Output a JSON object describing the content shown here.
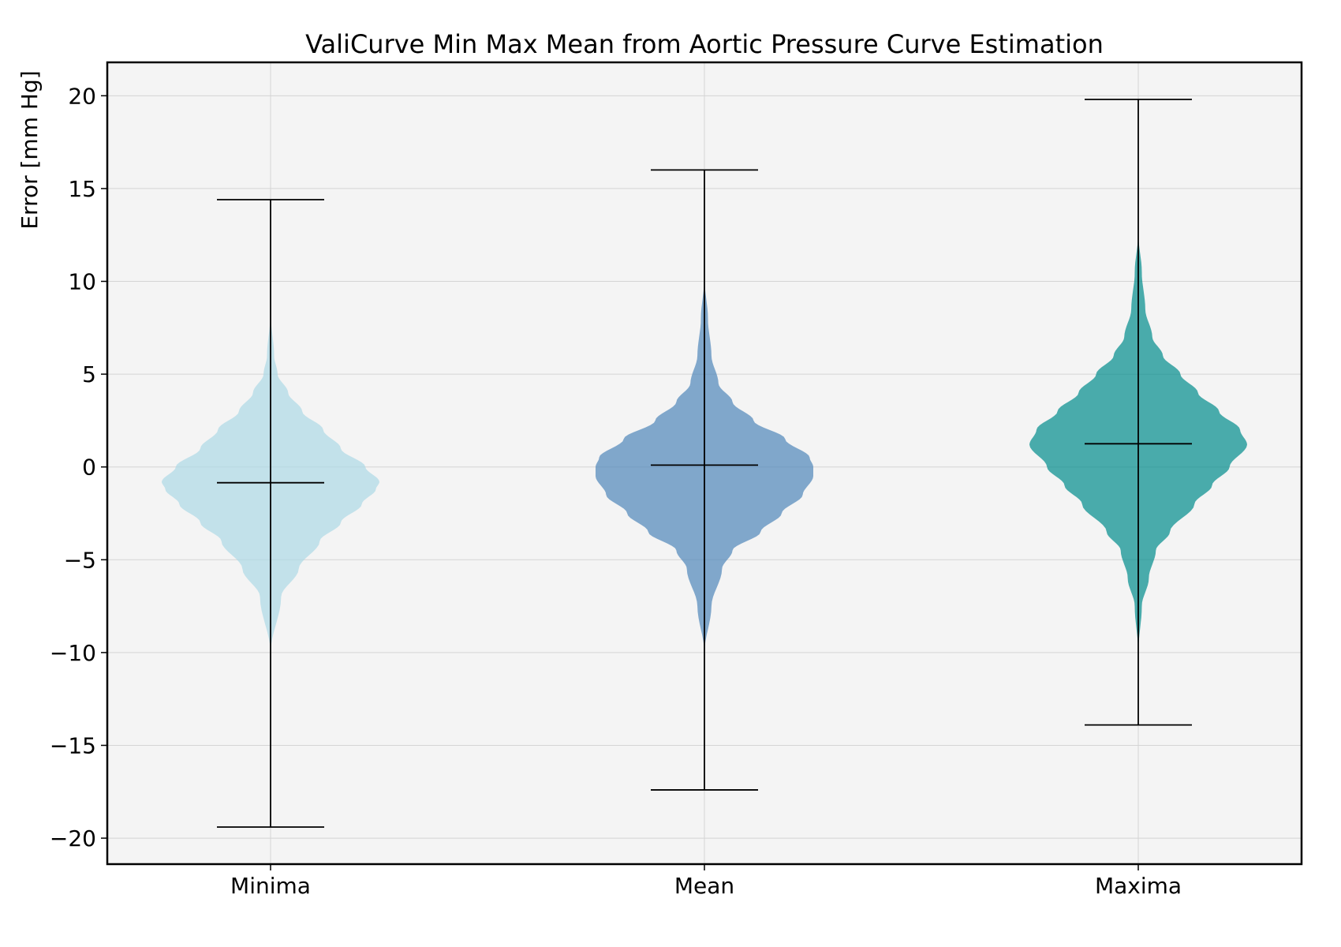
{
  "chart_data": {
    "type": "violin",
    "title": "ValiCurve Min Max Mean from Aortic Pressure Curve Estimation",
    "xlabel": "",
    "ylabel": "Error [mm Hg]",
    "ylim": [
      -21.4,
      21.8
    ],
    "yticks": [
      20,
      15,
      10,
      5,
      0,
      -5,
      -10,
      -15,
      -20
    ],
    "ytick_labels": [
      "20",
      "15",
      "10",
      "5",
      "0",
      "−5",
      "−10",
      "−15",
      "−20"
    ],
    "grid": true,
    "categories": [
      "Minima",
      "Mean",
      "Maxima"
    ],
    "series": [
      {
        "category": "Minima",
        "color": "#add8e6",
        "min": -19.4,
        "max": 14.4,
        "mean": -0.85,
        "profile": [
          [
            -10,
            0
          ],
          [
            -7,
            0.03
          ],
          [
            -5.5,
            0.08
          ],
          [
            -4,
            0.14
          ],
          [
            -3,
            0.2
          ],
          [
            -2,
            0.26
          ],
          [
            -1.2,
            0.3
          ],
          [
            -0.8,
            0.31
          ],
          [
            0,
            0.27
          ],
          [
            1,
            0.2
          ],
          [
            2,
            0.15
          ],
          [
            3,
            0.09
          ],
          [
            4,
            0.05
          ],
          [
            5,
            0.02
          ],
          [
            6,
            0.01
          ],
          [
            8.3,
            0
          ]
        ]
      },
      {
        "category": "Mean",
        "color": "#4f86b9",
        "min": -17.4,
        "max": 16.0,
        "mean": 0.1,
        "profile": [
          [
            -10,
            0
          ],
          [
            -7.5,
            0.02
          ],
          [
            -5.5,
            0.05
          ],
          [
            -4.5,
            0.08
          ],
          [
            -3.5,
            0.16
          ],
          [
            -2.5,
            0.22
          ],
          [
            -1.5,
            0.28
          ],
          [
            -0.5,
            0.31
          ],
          [
            0,
            0.31
          ],
          [
            0.5,
            0.3
          ],
          [
            1.5,
            0.23
          ],
          [
            2.5,
            0.14
          ],
          [
            3.5,
            0.08
          ],
          [
            4.5,
            0.04
          ],
          [
            6,
            0.02
          ],
          [
            8,
            0.01
          ],
          [
            10.2,
            0
          ]
        ]
      },
      {
        "category": "Maxima",
        "color": "#008b8b",
        "min": -13.9,
        "max": 19.8,
        "mean": 1.25,
        "profile": [
          [
            -10,
            0
          ],
          [
            -7.5,
            0.01
          ],
          [
            -6,
            0.03
          ],
          [
            -4.5,
            0.05
          ],
          [
            -3.5,
            0.09
          ],
          [
            -2,
            0.16
          ],
          [
            -1,
            0.21
          ],
          [
            0,
            0.26
          ],
          [
            1.2,
            0.31
          ],
          [
            2,
            0.29
          ],
          [
            3,
            0.23
          ],
          [
            4,
            0.17
          ],
          [
            5,
            0.12
          ],
          [
            6,
            0.07
          ],
          [
            7,
            0.04
          ],
          [
            8.5,
            0.02
          ],
          [
            10.5,
            0.01
          ],
          [
            12.6,
            0
          ]
        ]
      }
    ]
  }
}
